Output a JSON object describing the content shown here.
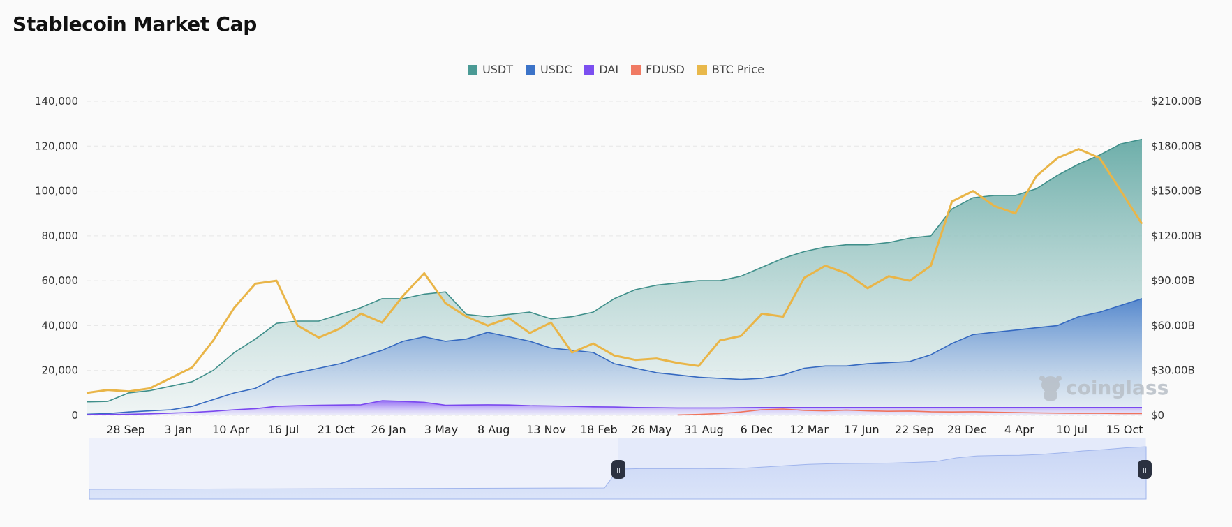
{
  "page": {
    "title": "Stablecoin Market Cap"
  },
  "legend": [
    {
      "label": "USDT",
      "color": "#4a9a95"
    },
    {
      "label": "USDC",
      "color": "#3b73c8"
    },
    {
      "label": "DAI",
      "color": "#7b4ff0"
    },
    {
      "label": "FDUSD",
      "color": "#f07a63"
    },
    {
      "label": "BTC Price",
      "color": "#e8b84b"
    }
  ],
  "watermark": "coinglass",
  "navigator": {
    "left_handle_label": "II",
    "right_handle_label": "II"
  },
  "chart_data": {
    "type": "area",
    "title": "Stablecoin Market Cap",
    "xlabel": "",
    "ylabel": "",
    "y_left": {
      "ticks": [
        "0",
        "20,000",
        "40,000",
        "60,000",
        "80,000",
        "100,000",
        "120,000",
        "140,000"
      ],
      "range": [
        0,
        140000
      ]
    },
    "y_right": {
      "ticks": [
        "$0",
        "$30.00B",
        "$60.00B",
        "$90.00B",
        "$120.00B",
        "$150.00B",
        "$180.00B",
        "$210.00B"
      ],
      "range": [
        0,
        210
      ]
    },
    "x_ticks": [
      "28 Sep",
      "3 Jan",
      "10 Apr",
      "16 Jul",
      "21 Oct",
      "26 Jan",
      "3 May",
      "8 Aug",
      "13 Nov",
      "18 Feb",
      "26 May",
      "31 Aug",
      "6 Dec",
      "12 Mar",
      "17 Jun",
      "22 Sep",
      "28 Dec",
      "4 Apr",
      "10 Jul",
      "15 Oct"
    ],
    "grid": true,
    "legend_position": "top",
    "x": [
      0,
      0.02,
      0.04,
      0.06,
      0.08,
      0.1,
      0.12,
      0.14,
      0.16,
      0.18,
      0.2,
      0.22,
      0.24,
      0.26,
      0.28,
      0.3,
      0.32,
      0.34,
      0.36,
      0.38,
      0.4,
      0.42,
      0.44,
      0.46,
      0.48,
      0.5,
      0.52,
      0.54,
      0.56,
      0.58,
      0.6,
      0.62,
      0.64,
      0.66,
      0.68,
      0.7,
      0.72,
      0.74,
      0.76,
      0.78,
      0.8,
      0.82,
      0.84,
      0.86,
      0.88,
      0.9,
      0.92,
      0.94,
      0.96,
      0.98,
      1.0
    ],
    "series": [
      {
        "name": "USDT",
        "axis": "left",
        "values": [
          6000,
          6200,
          10000,
          11000,
          13000,
          15000,
          20000,
          28000,
          34000,
          41000,
          42000,
          42000,
          45000,
          48000,
          52000,
          52000,
          54000,
          55000,
          45000,
          44000,
          45000,
          46000,
          43000,
          44000,
          46000,
          52000,
          56000,
          58000,
          59000,
          60000,
          60000,
          62000,
          66000,
          70000,
          73000,
          75000,
          76000,
          76000,
          77000,
          79000,
          80000,
          92000,
          97000,
          98000,
          98000,
          101000,
          107000,
          112000,
          116000,
          121000,
          123000
        ]
      },
      {
        "name": "USDC",
        "axis": "left",
        "values": [
          500,
          800,
          1500,
          2000,
          2500,
          4000,
          7000,
          10000,
          12000,
          17000,
          19000,
          21000,
          23000,
          26000,
          29000,
          33000,
          35000,
          33000,
          34000,
          37000,
          35000,
          33000,
          30000,
          29000,
          28000,
          23000,
          21000,
          19000,
          18000,
          17000,
          16500,
          16000,
          16500,
          18000,
          21000,
          22000,
          22000,
          23000,
          23500,
          24000,
          27000,
          32000,
          36000,
          37000,
          38000,
          39000,
          40000,
          44000,
          46000,
          49000,
          52000
        ]
      },
      {
        "name": "DAI",
        "axis": "left",
        "values": [
          300,
          400,
          500,
          700,
          1000,
          1300,
          1800,
          2500,
          3000,
          4000,
          4300,
          4500,
          4600,
          4700,
          6500,
          6200,
          5800,
          4500,
          4600,
          4700,
          4600,
          4300,
          4200,
          4000,
          3800,
          3700,
          3500,
          3400,
          3300,
          3300,
          3300,
          3400,
          3500,
          3500,
          3500,
          3500,
          3500,
          3500,
          3500,
          3500,
          3500,
          3500,
          3500,
          3500,
          3500,
          3500,
          3500,
          3500,
          3500,
          3500,
          3500
        ]
      },
      {
        "name": "FDUSD",
        "axis": "left",
        "values": [
          null,
          null,
          null,
          null,
          null,
          null,
          null,
          null,
          null,
          null,
          null,
          null,
          null,
          null,
          null,
          null,
          null,
          null,
          null,
          null,
          null,
          null,
          null,
          null,
          null,
          null,
          null,
          null,
          200,
          400,
          800,
          1500,
          2500,
          2800,
          2200,
          2000,
          2300,
          2000,
          1800,
          1900,
          1600,
          1500,
          1600,
          1400,
          1200,
          1100,
          1000,
          900,
          900,
          800,
          800
        ]
      },
      {
        "name": "BTC Price",
        "axis": "right",
        "unit": "$B",
        "values": [
          15,
          17,
          16,
          18,
          25,
          32,
          50,
          72,
          88,
          90,
          60,
          52,
          58,
          68,
          62,
          80,
          95,
          75,
          66,
          60,
          65,
          55,
          62,
          42,
          48,
          40,
          37,
          38,
          35,
          33,
          50,
          53,
          68,
          66,
          92,
          100,
          95,
          85,
          93,
          90,
          100,
          143,
          150,
          140,
          135,
          160,
          172,
          178,
          172,
          150,
          128
        ]
      }
    ]
  }
}
